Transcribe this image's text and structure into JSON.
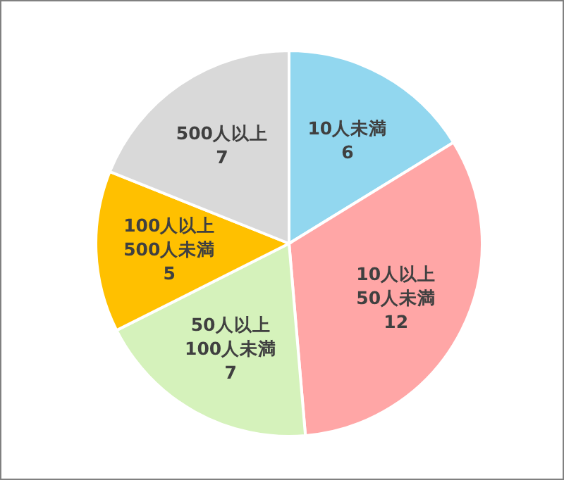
{
  "chart_data": {
    "type": "pie",
    "categories": [
      "10人未満",
      "10人以上50人未満",
      "50人以上100人未満",
      "100人以上500人未満",
      "500人以上"
    ],
    "values": [
      6,
      12,
      7,
      5,
      7
    ],
    "colors": [
      "#92d7ef",
      "#ffa6a6",
      "#d5f2bb",
      "#ffc000",
      "#d9d9d9"
    ],
    "data_labels": true
  }
}
